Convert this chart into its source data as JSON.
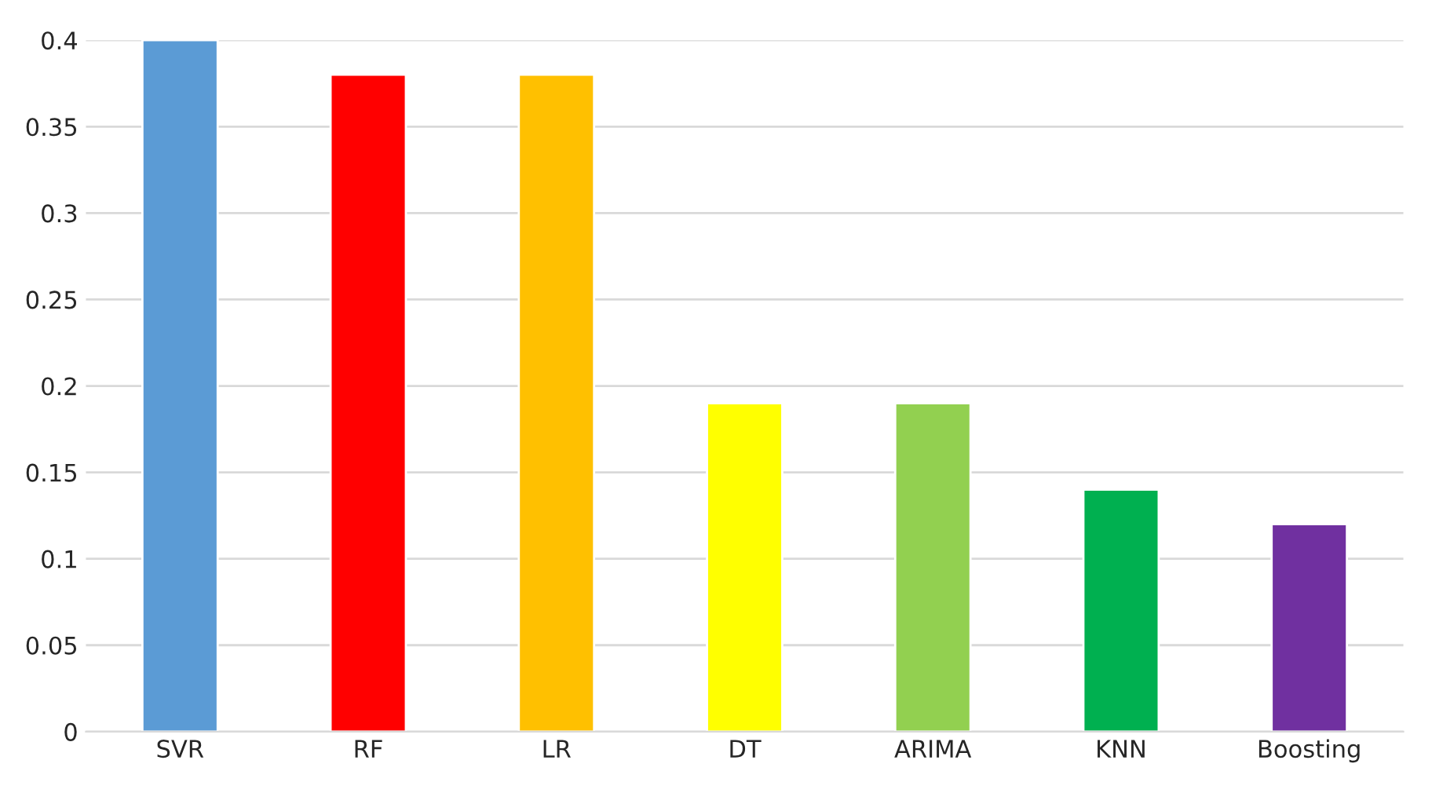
{
  "chart_data": {
    "type": "bar",
    "categories": [
      "SVR",
      "RF",
      "LR",
      "DT",
      "ARIMA",
      "KNN",
      "Boosting"
    ],
    "values": [
      0.4,
      0.38,
      0.38,
      0.19,
      0.19,
      0.14,
      0.12
    ],
    "colors": [
      "#5b9bd5",
      "#ff0000",
      "#ffc000",
      "#ffff00",
      "#92d050",
      "#00b050",
      "#7030a0"
    ],
    "ylim": [
      0,
      0.4
    ],
    "yticks": [
      0,
      0.05,
      0.1,
      0.15,
      0.2,
      0.25,
      0.3,
      0.35,
      0.4
    ],
    "grid": "y"
  }
}
